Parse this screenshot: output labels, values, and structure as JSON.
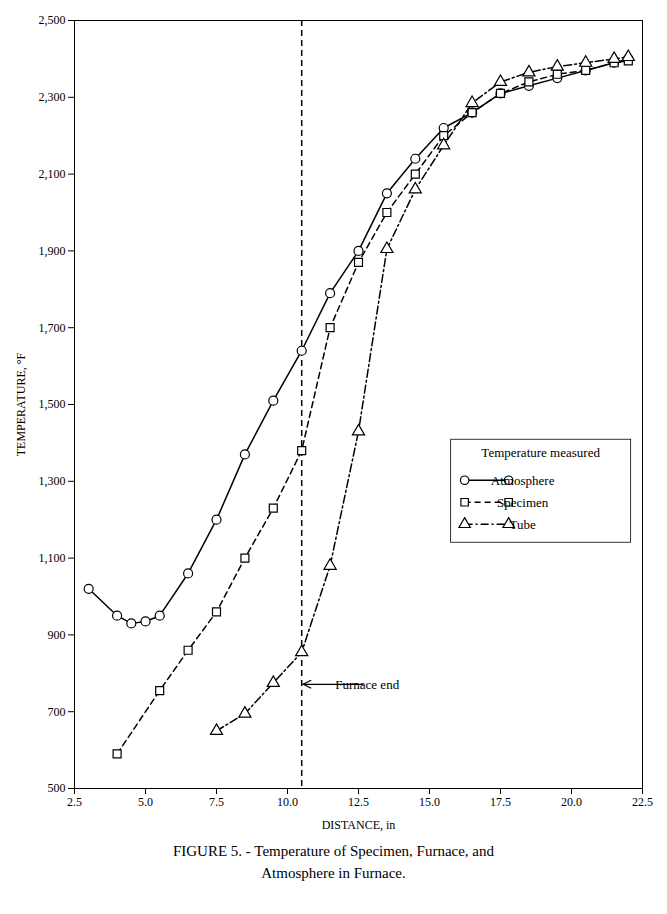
{
  "chart_data": {
    "type": "line",
    "xlabel": "DISTANCE, in",
    "ylabel": "TEMPERATURE, °F",
    "caption": [
      "FIGURE 5. - Temperature of Specimen, Furnace, and",
      "Atmosphere in Furnace."
    ],
    "legend_title": "Temperature measured",
    "legend": "lower right",
    "grid": false,
    "series": [
      {
        "name": "Atmosphere",
        "color": "#000000",
        "marker": "circle",
        "line_style": "solid",
        "x": [
          3.0,
          4.0,
          4.5,
          5.0,
          5.5,
          6.5,
          7.5,
          8.5,
          9.5,
          10.5,
          11.5,
          12.5,
          13.5,
          14.5,
          15.5,
          16.5,
          17.5,
          18.5,
          19.5,
          20.5,
          21.5,
          22.0
        ],
        "values": [
          1020,
          950,
          930,
          935,
          950,
          1060,
          1200,
          1370,
          1510,
          1640,
          1790,
          1900,
          2050,
          2140,
          2220,
          2260,
          2310,
          2330,
          2350,
          2370,
          2390,
          2400
        ]
      },
      {
        "name": "Specimen",
        "color": "#000000",
        "marker": "square",
        "line_style": "dashed",
        "x": [
          4.0,
          5.5,
          6.5,
          7.5,
          8.5,
          9.5,
          10.5,
          11.5,
          12.5,
          13.5,
          14.5,
          15.5,
          16.5,
          17.5,
          18.5,
          19.5,
          20.5,
          21.5,
          22.0
        ],
        "values": [
          590,
          755,
          860,
          960,
          1100,
          1230,
          1380,
          1700,
          1870,
          2000,
          2100,
          2200,
          2260,
          2310,
          2340,
          2360,
          2370,
          2390,
          2395
        ]
      },
      {
        "name": "Tube",
        "color": "#000000",
        "marker": "triangle",
        "line_style": "dashdot",
        "x": [
          7.5,
          8.5,
          9.5,
          10.5,
          11.5,
          12.5,
          13.5,
          14.5,
          15.5,
          16.5,
          17.5,
          18.5,
          19.5,
          20.5,
          21.5,
          22.0
        ],
        "values": [
          650,
          695,
          775,
          855,
          1080,
          1430,
          1905,
          2060,
          2175,
          2285,
          2340,
          2365,
          2380,
          2390,
          2400,
          2405
        ]
      }
    ],
    "annotations": [
      {
        "text": "Furnace end",
        "x": 10.5,
        "y": 770,
        "line_style": "dashed"
      }
    ],
    "xlim": [
      2.5,
      22.5
    ],
    "ylim": [
      500,
      2500
    ],
    "xticks": [
      2.5,
      {
        "value": 5,
        "label": "5.0"
      },
      7.5,
      {
        "value": 10,
        "label": "10.0"
      },
      12.5,
      {
        "value": 15,
        "label": "15.0"
      },
      17.5,
      {
        "value": 20,
        "label": "20.0"
      },
      22.5
    ],
    "yticks": [
      500,
      700,
      900,
      {
        "value": 1100,
        "label": "1,100"
      },
      {
        "value": 1300,
        "label": "1,300"
      },
      {
        "value": 1500,
        "label": "1,500"
      },
      {
        "value": 1700,
        "label": "1,700"
      },
      {
        "value": 1900,
        "label": "1,900"
      },
      {
        "value": 2100,
        "label": "2,100"
      },
      {
        "value": 2300,
        "label": "2,300"
      },
      {
        "value": 2500,
        "label": "2,500"
      }
    ]
  }
}
